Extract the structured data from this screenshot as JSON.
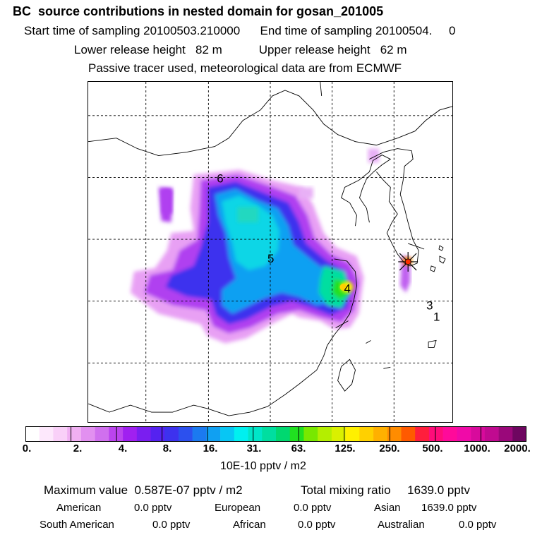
{
  "header": {
    "title": "BC  source contributions in nested domain for gosan_201005",
    "line1": "Start time of sampling 20100503.210000      End time of sampling 20100504.     0",
    "line2": "Lower release height   82 m           Upper release height   62 m",
    "line3": "Passive tracer used, meteorological data are from ECMWF"
  },
  "map": {
    "labels": [
      "6",
      "5",
      "4",
      "3",
      "1"
    ],
    "marker": "gosan-station-star"
  },
  "colorbar": {
    "ticks": [
      "0.",
      "2.",
      "4.",
      "8.",
      "16.",
      "31.",
      "63.",
      "125.",
      "250.",
      "500.",
      "1000.",
      "2000."
    ],
    "colors": [
      "#ffffff",
      "#fde8fc",
      "#f9d0f8",
      "#f0b0f2",
      "#e290f0",
      "#d070ee",
      "#bb44ee",
      "#a020f0",
      "#7a1ef0",
      "#5522f0",
      "#3d32ee",
      "#2c50ee",
      "#1b7af0",
      "#10a0f2",
      "#08c6f4",
      "#00f0f0",
      "#00e6c8",
      "#00dea0",
      "#00d870",
      "#20e020",
      "#78e800",
      "#b4ee00",
      "#daf000",
      "#fff000",
      "#ffd000",
      "#ffb000",
      "#ff8c00",
      "#ff5a00",
      "#ff1e3c",
      "#ff0c7a",
      "#ff0a9a",
      "#f00aa8",
      "#d80a9c",
      "#c00a90",
      "#9a087a",
      "#6e0660"
    ],
    "unit": "10E-10 pptv / m2"
  },
  "stats": {
    "max_line": "Maximum value  0.587E-07 pptv / m2",
    "total_line": "Total mixing ratio     1639.0 pptv",
    "regions": [
      {
        "name": "American",
        "value": "0.0 pptv"
      },
      {
        "name": "European",
        "value": "0.0 pptv"
      },
      {
        "name": "Asian",
        "value": "1639.0 pptv"
      },
      {
        "name": "South American",
        "value": "0.0 pptv"
      },
      {
        "name": "African",
        "value": "0.0 pptv"
      },
      {
        "name": "Australian",
        "value": "0.0 pptv"
      }
    ]
  }
}
